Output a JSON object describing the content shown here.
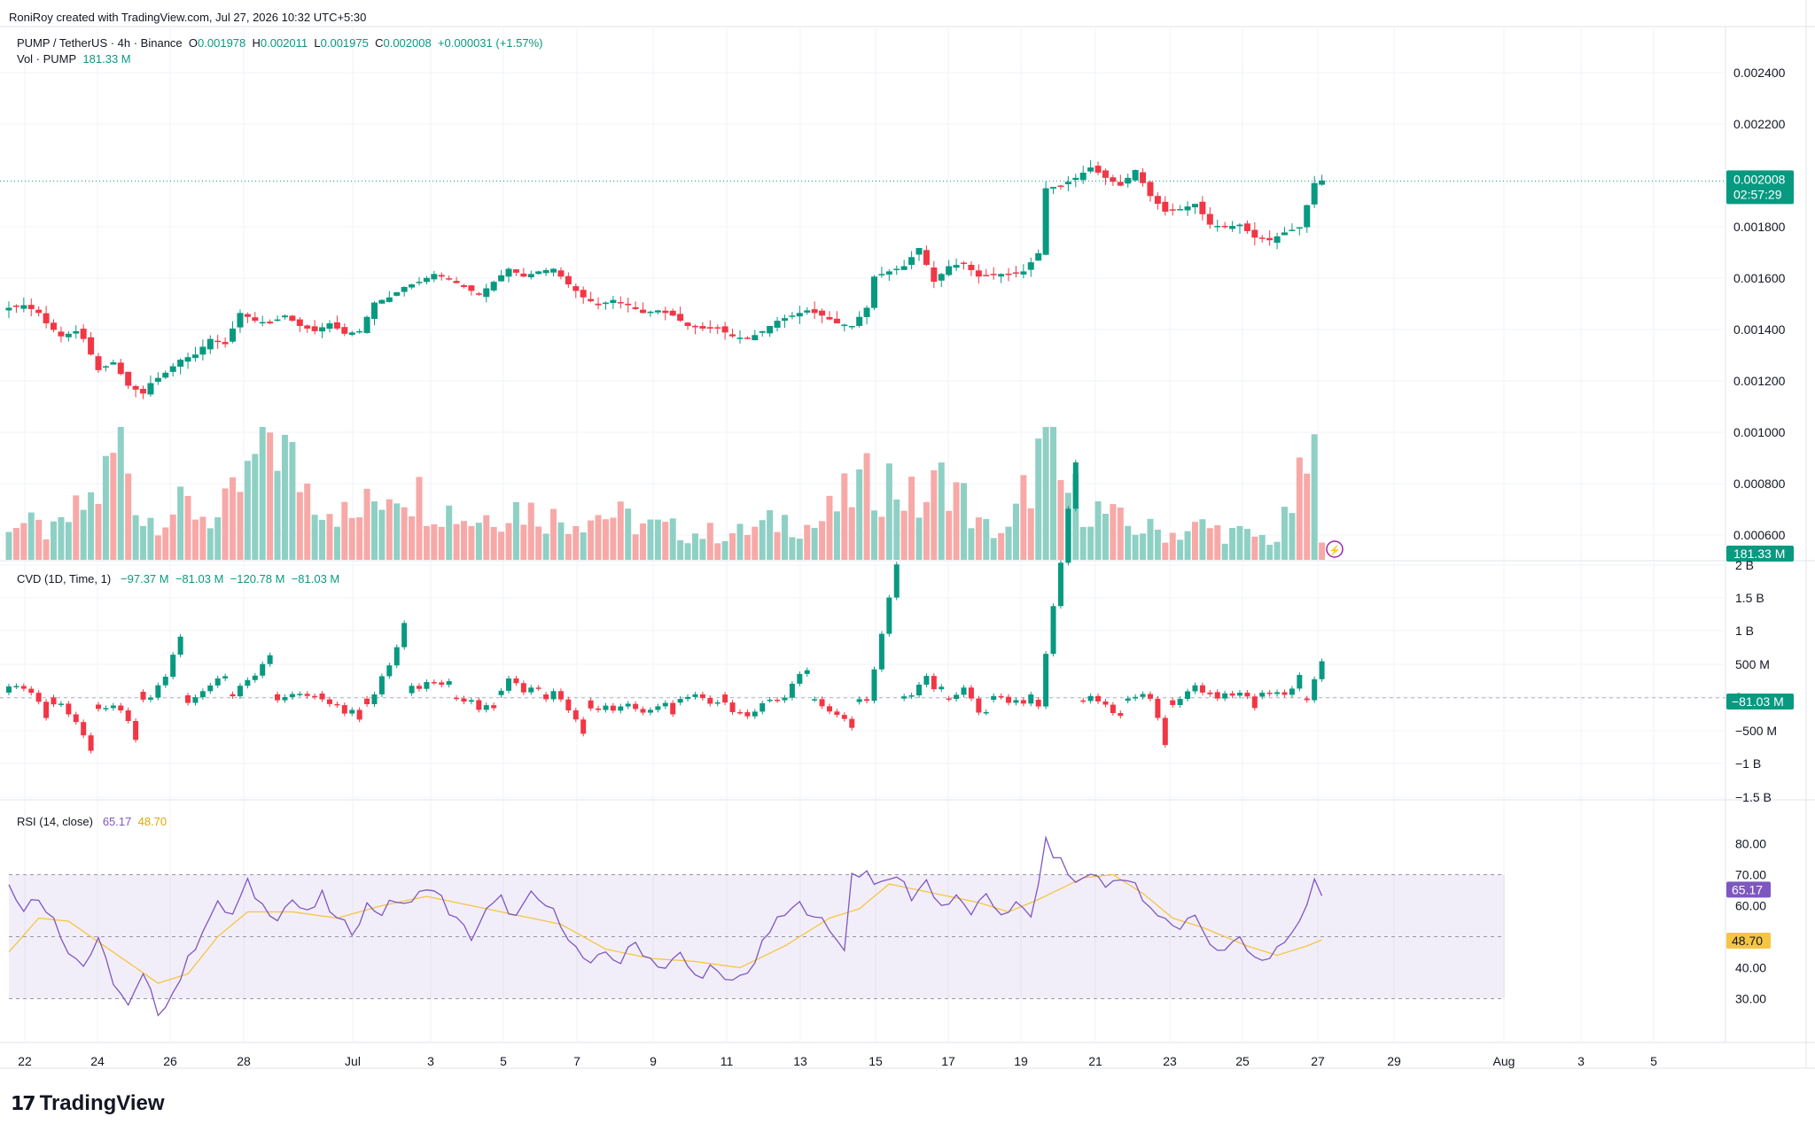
{
  "credit": "RoniRoy created with TradingView.com, Jul 27, 2026 10:32 UTC+5:30",
  "brand": "TradingView",
  "symbol_line": {
    "symbol": "PUMP / TetherUS · 4h · Binance",
    "o_label": "O",
    "o": "0.001978",
    "h_label": "H",
    "h": "0.002011",
    "l_label": "L",
    "l": "0.001975",
    "c_label": "C",
    "c": "0.002008",
    "change": "+0.000031 (+1.57%)"
  },
  "vol_line": {
    "label": "Vol · PUMP",
    "value": "181.33 M"
  },
  "cvd_line": {
    "label": "CVD (1D, Time, 1)",
    "v1": "−97.37 M",
    "v2": "−81.03 M",
    "v3": "−120.78 M",
    "v4": "−81.03 M"
  },
  "rsi_line": {
    "label": "RSI (14, close)",
    "v1": "65.17",
    "v2": "48.70"
  },
  "price_axis": {
    "ticks": [
      "0.002400",
      "0.002200",
      "0.001800",
      "0.001600",
      "0.001400",
      "0.001200",
      "0.001000",
      "0.000800",
      "0.000600"
    ],
    "current_price": "0.002008",
    "countdown": "02:57:29",
    "volume_badge": "181.33 M"
  },
  "cvd_axis": {
    "ticks": [
      "2 B",
      "1.5 B",
      "1 B",
      "500 M",
      "0",
      "−500 M",
      "−1 B",
      "−1.5 B"
    ],
    "badge": "−81.03 M"
  },
  "rsi_axis": {
    "ticks": [
      "80.00",
      "70.00",
      "60.00",
      "40.00",
      "30.00"
    ],
    "badge_rsi": "65.17",
    "badge_ma": "48.70"
  },
  "time_axis": [
    "22",
    "24",
    "26",
    "28",
    "Jul",
    "3",
    "5",
    "7",
    "9",
    "11",
    "13",
    "15",
    "17",
    "19",
    "21",
    "23",
    "25",
    "27",
    "29",
    "Aug",
    "3",
    "5"
  ],
  "colors": {
    "up": "#089981",
    "down": "#f23645",
    "up_vol": "#8fd0c5",
    "down_vol": "#f7a9a7",
    "rsi": "#7e57c2",
    "rsi_ma": "#f5c542",
    "rsi_band": "#7e57c2"
  },
  "chart_data": {
    "type": "candlestick",
    "title": "PUMP / TetherUS · 4h · Binance",
    "ylim": [
      0.00055,
      0.0025
    ],
    "price_close_path": [
      [
        0,
        0.00152
      ],
      [
        2,
        0.00153
      ],
      [
        4,
        0.0015
      ],
      [
        5,
        0.00146
      ],
      [
        7,
        0.00141
      ],
      [
        9,
        0.00143
      ],
      [
        10,
        0.0014
      ],
      [
        12,
        0.00128
      ],
      [
        14,
        0.00131
      ],
      [
        16,
        0.00122
      ],
      [
        18,
        0.00119
      ],
      [
        19,
        0.00123
      ],
      [
        21,
        0.00127
      ],
      [
        23,
        0.00132
      ],
      [
        25,
        0.00134
      ],
      [
        27,
        0.0014
      ],
      [
        29,
        0.00138
      ],
      [
        31,
        0.0015
      ],
      [
        33,
        0.00147
      ],
      [
        35,
        0.00146
      ],
      [
        37,
        0.00149
      ],
      [
        39,
        0.00145
      ],
      [
        41,
        0.00143
      ],
      [
        43,
        0.00146
      ],
      [
        45,
        0.00142
      ],
      [
        47,
        0.00143
      ],
      [
        49,
        0.00154
      ],
      [
        51,
        0.00156
      ],
      [
        53,
        0.0016
      ],
      [
        55,
        0.00162
      ],
      [
        57,
        0.00165
      ],
      [
        59,
        0.00163
      ],
      [
        61,
        0.0016
      ],
      [
        63,
        0.00157
      ],
      [
        65,
        0.00162
      ],
      [
        67,
        0.00167
      ],
      [
        69,
        0.00164
      ],
      [
        71,
        0.00166
      ],
      [
        73,
        0.00167
      ],
      [
        75,
        0.00161
      ],
      [
        77,
        0.00156
      ],
      [
        79,
        0.00153
      ],
      [
        81,
        0.00155
      ],
      [
        83,
        0.00153
      ],
      [
        85,
        0.0015
      ],
      [
        87,
        0.00151
      ],
      [
        89,
        0.00149
      ],
      [
        91,
        0.00145
      ],
      [
        93,
        0.00144
      ],
      [
        95,
        0.00144
      ],
      [
        97,
        0.00141
      ],
      [
        99,
        0.0014
      ],
      [
        101,
        0.00143
      ],
      [
        103,
        0.00147
      ],
      [
        105,
        0.00149
      ],
      [
        107,
        0.00151
      ],
      [
        109,
        0.00149
      ],
      [
        111,
        0.00146
      ],
      [
        113,
        0.00145
      ],
      [
        115,
        0.00152
      ],
      [
        116,
        0.00164
      ],
      [
        118,
        0.00166
      ],
      [
        120,
        0.00168
      ],
      [
        122,
        0.00175
      ],
      [
        124,
        0.00162
      ],
      [
        126,
        0.00168
      ],
      [
        128,
        0.00169
      ],
      [
        130,
        0.00164
      ],
      [
        132,
        0.00165
      ],
      [
        134,
        0.00165
      ],
      [
        136,
        0.00166
      ],
      [
        138,
        0.00173
      ],
      [
        139,
        0.00198
      ],
      [
        141,
        0.00199
      ],
      [
        143,
        0.00202
      ],
      [
        145,
        0.00206
      ],
      [
        147,
        0.00202
      ],
      [
        149,
        0.00199
      ],
      [
        151,
        0.00205
      ],
      [
        153,
        0.00195
      ],
      [
        155,
        0.00189
      ],
      [
        157,
        0.0019
      ],
      [
        159,
        0.00192
      ],
      [
        161,
        0.00184
      ],
      [
        163,
        0.00183
      ],
      [
        165,
        0.00184
      ],
      [
        167,
        0.00179
      ],
      [
        169,
        0.00178
      ],
      [
        171,
        0.00181
      ],
      [
        173,
        0.00183
      ],
      [
        175,
        0.002
      ],
      [
        176,
        0.00201
      ]
    ],
    "volume_relative_path": [
      [
        0,
        0.3
      ],
      [
        6,
        0.2
      ],
      [
        12,
        0.5
      ],
      [
        15,
        0.9
      ],
      [
        18,
        0.3
      ],
      [
        24,
        0.4
      ],
      [
        28,
        0.3
      ],
      [
        32,
        0.6
      ],
      [
        35,
        1.0
      ],
      [
        38,
        0.7
      ],
      [
        41,
        0.5
      ],
      [
        46,
        0.3
      ],
      [
        52,
        0.6
      ],
      [
        56,
        0.45
      ],
      [
        62,
        0.3
      ],
      [
        68,
        0.4
      ],
      [
        74,
        0.3
      ],
      [
        80,
        0.35
      ],
      [
        86,
        0.25
      ],
      [
        92,
        0.2
      ],
      [
        98,
        0.2
      ],
      [
        104,
        0.3
      ],
      [
        108,
        0.25
      ],
      [
        114,
        0.55
      ],
      [
        118,
        0.6
      ],
      [
        122,
        0.4
      ],
      [
        126,
        0.65
      ],
      [
        130,
        0.25
      ],
      [
        134,
        0.2
      ],
      [
        139,
        0.9
      ],
      [
        141,
        0.55
      ],
      [
        145,
        0.4
      ],
      [
        150,
        0.25
      ],
      [
        156,
        0.2
      ],
      [
        160,
        0.25
      ],
      [
        164,
        0.2
      ],
      [
        170,
        0.15
      ],
      [
        175,
        0.8
      ],
      [
        176,
        0.1
      ]
    ],
    "cvd_ylim": [
      -1.5,
      2.0
    ],
    "cvd_unit": "B",
    "rsi": {
      "ylim": [
        25,
        85
      ],
      "overbought": 70,
      "oversold": 30,
      "midline": 50,
      "rsi_path": [
        [
          0,
          66
        ],
        [
          2,
          60
        ],
        [
          4,
          62
        ],
        [
          6,
          57
        ],
        [
          8,
          45
        ],
        [
          10,
          41
        ],
        [
          12,
          48
        ],
        [
          14,
          36
        ],
        [
          16,
          27
        ],
        [
          18,
          37
        ],
        [
          20,
          26
        ],
        [
          22,
          32
        ],
        [
          24,
          42
        ],
        [
          26,
          53
        ],
        [
          28,
          60
        ],
        [
          30,
          57
        ],
        [
          32,
          67
        ],
        [
          34,
          60
        ],
        [
          36,
          57
        ],
        [
          38,
          62
        ],
        [
          40,
          57
        ],
        [
          42,
          63
        ],
        [
          44,
          55
        ],
        [
          46,
          52
        ],
        [
          48,
          60
        ],
        [
          50,
          58
        ],
        [
          52,
          62
        ],
        [
          54,
          60
        ],
        [
          56,
          67
        ],
        [
          58,
          62
        ],
        [
          60,
          55
        ],
        [
          62,
          50
        ],
        [
          64,
          58
        ],
        [
          66,
          62
        ],
        [
          68,
          56
        ],
        [
          70,
          63
        ],
        [
          72,
          60
        ],
        [
          74,
          55
        ],
        [
          76,
          46
        ],
        [
          78,
          40
        ],
        [
          80,
          45
        ],
        [
          82,
          42
        ],
        [
          84,
          48
        ],
        [
          86,
          43
        ],
        [
          88,
          40
        ],
        [
          90,
          44
        ],
        [
          92,
          37
        ],
        [
          94,
          40
        ],
        [
          96,
          35
        ],
        [
          98,
          37
        ],
        [
          100,
          42
        ],
        [
          102,
          52
        ],
        [
          104,
          57
        ],
        [
          106,
          60
        ],
        [
          108,
          58
        ],
        [
          110,
          51
        ],
        [
          112,
          47
        ],
        [
          113,
          70
        ],
        [
          115,
          71
        ],
        [
          117,
          66
        ],
        [
          119,
          70
        ],
        [
          121,
          63
        ],
        [
          123,
          68
        ],
        [
          125,
          60
        ],
        [
          127,
          62
        ],
        [
          129,
          58
        ],
        [
          131,
          62
        ],
        [
          133,
          58
        ],
        [
          135,
          60
        ],
        [
          137,
          56
        ],
        [
          139,
          80
        ],
        [
          141,
          74
        ],
        [
          143,
          67
        ],
        [
          145,
          71
        ],
        [
          147,
          66
        ],
        [
          149,
          70
        ],
        [
          151,
          66
        ],
        [
          153,
          58
        ],
        [
          155,
          55
        ],
        [
          157,
          53
        ],
        [
          159,
          58
        ],
        [
          161,
          47
        ],
        [
          163,
          45
        ],
        [
          165,
          50
        ],
        [
          167,
          44
        ],
        [
          169,
          42
        ],
        [
          171,
          48
        ],
        [
          173,
          54
        ],
        [
          175,
          68
        ],
        [
          176,
          65
        ]
      ],
      "ma_path": [
        [
          0,
          45
        ],
        [
          4,
          56
        ],
        [
          8,
          55
        ],
        [
          14,
          45
        ],
        [
          20,
          35
        ],
        [
          24,
          38
        ],
        [
          28,
          50
        ],
        [
          32,
          58
        ],
        [
          38,
          58
        ],
        [
          44,
          56
        ],
        [
          50,
          60
        ],
        [
          56,
          63
        ],
        [
          62,
          60
        ],
        [
          68,
          57
        ],
        [
          74,
          54
        ],
        [
          80,
          46
        ],
        [
          86,
          43
        ],
        [
          92,
          42
        ],
        [
          98,
          40
        ],
        [
          104,
          47
        ],
        [
          110,
          56
        ],
        [
          114,
          59
        ],
        [
          118,
          67
        ],
        [
          124,
          64
        ],
        [
          130,
          61
        ],
        [
          134,
          58
        ],
        [
          138,
          62
        ],
        [
          144,
          69
        ],
        [
          148,
          70
        ],
        [
          152,
          64
        ],
        [
          156,
          56
        ],
        [
          160,
          53
        ],
        [
          166,
          47
        ],
        [
          170,
          44
        ],
        [
          174,
          47
        ],
        [
          176,
          49
        ]
      ]
    },
    "xlabel": "",
    "ylabel": ""
  }
}
